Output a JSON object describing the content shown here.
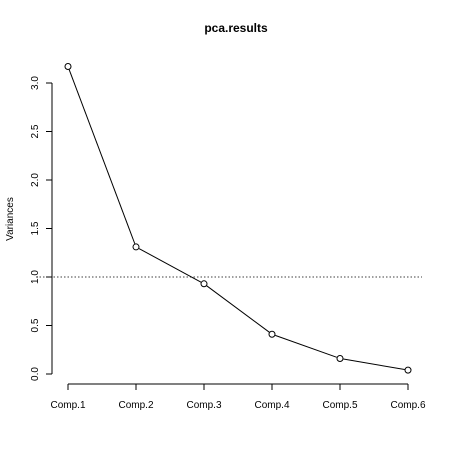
{
  "chart_data": {
    "type": "line",
    "title": "pca.results",
    "xlabel": "",
    "ylabel": "Variances",
    "categories": [
      "Comp.1",
      "Comp.2",
      "Comp.3",
      "Comp.4",
      "Comp.5",
      "Comp.6"
    ],
    "values": [
      3.17,
      1.31,
      0.93,
      0.41,
      0.16,
      0.04
    ],
    "ylim": [
      0,
      3.2
    ],
    "yticks": [
      "0.0",
      "0.5",
      "1.0",
      "1.5",
      "2.0",
      "2.5",
      "3.0"
    ],
    "reference_line": {
      "y": 1.0,
      "style": "dotted"
    },
    "markers": "open-circle",
    "grid": false,
    "colors": {
      "line": "#000000",
      "axis": "#000000",
      "background": "#ffffff"
    }
  }
}
